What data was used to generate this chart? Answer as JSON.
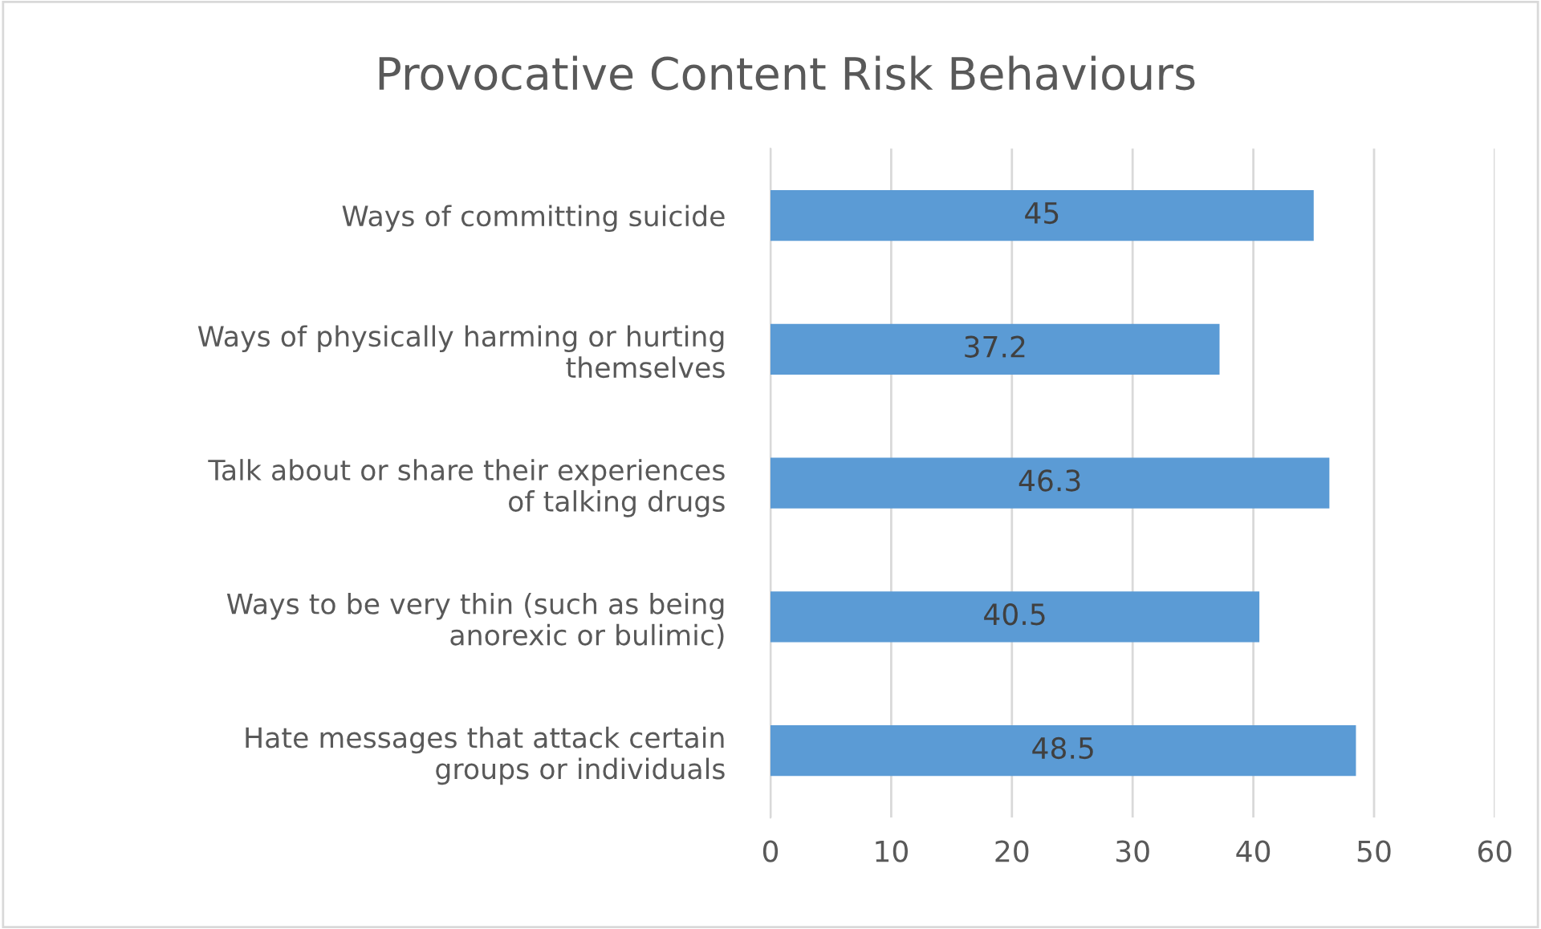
{
  "chart_data": {
    "type": "bar",
    "orientation": "horizontal",
    "title": "Provocative Content Risk Behaviours",
    "categories": [
      "Ways of committing suicide",
      "Ways of physically harming or hurting themselves",
      "Talk about or share their experiences of talking drugs",
      "Ways to be very thin (such as being anorexic or bulimic)",
      "Hate messages that attack certain groups or individuals"
    ],
    "values": [
      45,
      37.2,
      46.3,
      40.5,
      48.5
    ],
    "color": "#5b9bd5",
    "xlim": [
      0,
      60
    ],
    "xticks": [
      0,
      10,
      20,
      30,
      40,
      50,
      60
    ],
    "grid": "x",
    "data_labels": true
  }
}
